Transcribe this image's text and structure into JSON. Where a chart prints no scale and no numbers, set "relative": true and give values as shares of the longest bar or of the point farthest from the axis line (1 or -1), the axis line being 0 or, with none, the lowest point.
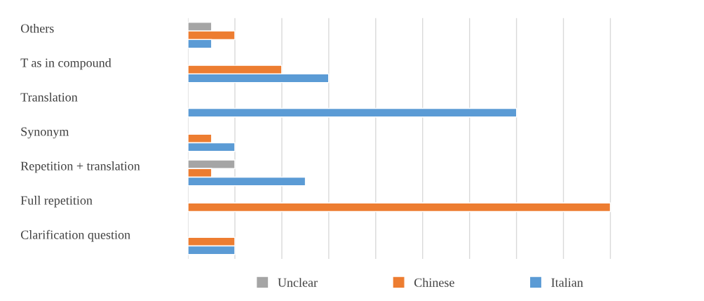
{
  "chart_data": {
    "type": "bar",
    "orientation": "horizontal",
    "relative": true,
    "grid": "x",
    "legend": "bottom",
    "categories": [
      "Others",
      "T as in compound",
      "Translation",
      "Synonym",
      "Repetition + translation",
      "Full repetition",
      "Clarification question"
    ],
    "series": [
      {
        "name": "Unclear",
        "color": "#a5a5a5",
        "values": [
          0.056,
          null,
          null,
          null,
          0.111,
          null,
          null
        ]
      },
      {
        "name": "Chinese",
        "color": "#ed7d31",
        "values": [
          0.111,
          0.222,
          null,
          0.056,
          0.056,
          1,
          0.111
        ]
      },
      {
        "name": "Italian",
        "color": "#5b9bd5",
        "values": [
          0.056,
          0.333,
          0.778,
          0.111,
          0.278,
          null,
          0.111
        ]
      }
    ]
  }
}
